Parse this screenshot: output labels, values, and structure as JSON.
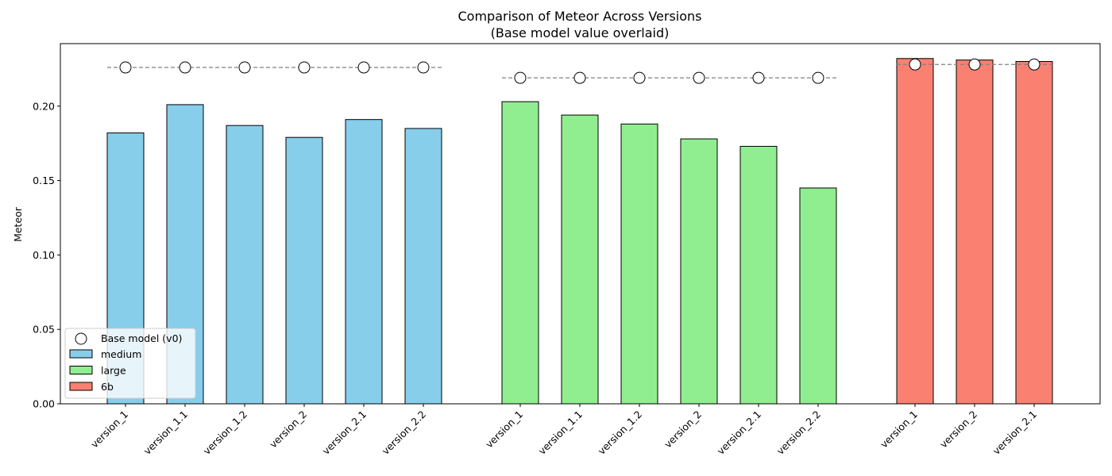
{
  "chart_data": {
    "type": "bar",
    "title": "Comparison of Meteor Across Versions",
    "subtitle": "(Base model value overlaid)",
    "xlabel": "",
    "ylabel": "Meteor",
    "ylim": [
      0,
      0.242
    ],
    "yticks": [
      "0.00",
      "0.05",
      "0.10",
      "0.15",
      "0.20"
    ],
    "grid": false,
    "legend_position": "bottom-left",
    "base_series_name": "Base model (v0)",
    "groups": [
      {
        "name": "medium",
        "color": "#87CEEB",
        "categories": [
          "version_1",
          "version_1.1",
          "version_1.2",
          "version_2",
          "version_2.1",
          "version_2.2"
        ],
        "values": [
          0.182,
          0.201,
          0.187,
          0.179,
          0.191,
          0.185
        ],
        "base_value": 0.226
      },
      {
        "name": "large",
        "color": "#90EE90",
        "categories": [
          "version_1",
          "version_1.1",
          "version_1.2",
          "version_2",
          "version_2.1",
          "version_2.2"
        ],
        "values": [
          0.203,
          0.194,
          0.188,
          0.178,
          0.173,
          0.145
        ],
        "base_value": 0.219
      },
      {
        "name": "6b",
        "color": "#FA8072",
        "categories": [
          "version_1",
          "version_2",
          "version_2.1"
        ],
        "values": [
          0.232,
          0.231,
          0.23
        ],
        "base_value": 0.228
      }
    ]
  }
}
